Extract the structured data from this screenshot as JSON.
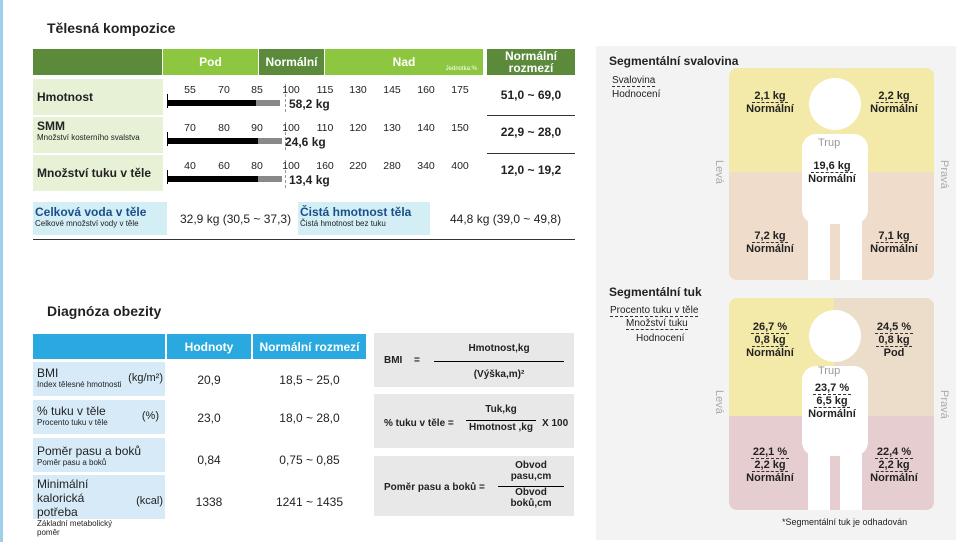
{
  "body_composition": {
    "title": "Tělesná kompozice",
    "headers": {
      "pod": "Pod",
      "normalni": "Normální",
      "nad": "Nad",
      "unit": "Jednotka:%",
      "range": "Normální rozmezí"
    },
    "rows": [
      {
        "label": "Hmotnost",
        "sub": "",
        "ticks": [
          "55",
          "70",
          "85",
          "100",
          "115",
          "130",
          "145",
          "160",
          "175"
        ],
        "value": "58,2 kg",
        "range": "51,0 ~ 69,0"
      },
      {
        "label": "SMM",
        "sub": "Množství kosterního svalstva",
        "ticks": [
          "70",
          "80",
          "90",
          "100",
          "110",
          "120",
          "130",
          "140",
          "150"
        ],
        "value": "24,6 kg",
        "range": "22,9 ~ 28,0"
      },
      {
        "label": "Množství tuku v těle",
        "sub": "",
        "ticks": [
          "40",
          "60",
          "80",
          "100",
          "160",
          "220",
          "280",
          "340",
          "400"
        ],
        "value": "13,4 kg",
        "range": "12,0 ~ 19,2"
      }
    ],
    "water": {
      "label": "Celková voda v těle",
      "sub": "Celkové množství vody v těle",
      "value": "32,9 kg (30,5 ~ 37,3)"
    },
    "lean": {
      "label": "Čistá hmotnost těla",
      "sub": "Čistá hmotnost bez tuku",
      "value": "44,8 kg (39,0 ~ 49,8)"
    }
  },
  "obesity": {
    "title": "Diagnóza obezity",
    "headers": {
      "values": "Hodnoty",
      "range": "Normální rozmezí"
    },
    "rows": [
      {
        "label": "BMI",
        "unit": "(kg/m²)",
        "sub": "Index tělesné hmotnosti",
        "value": "20,9",
        "range": "18,5 ~ 25,0"
      },
      {
        "label": "% tuku v těle",
        "unit": "(%)",
        "sub": "Procento tuku v těle",
        "value": "23,0",
        "range": "18,0 ~ 28,0"
      },
      {
        "label": "Poměr pasu a boků",
        "unit": "",
        "sub": "Poměr pasu a boků",
        "value": "0,84",
        "range": "0,75 ~ 0,85"
      },
      {
        "label": "Minimální kalorická potřeba",
        "unit": "(kcal)",
        "sub": "Základní metabolický poměr",
        "value": "1338",
        "range": "1241 ~ 1435"
      }
    ],
    "formulas": [
      {
        "left": "BMI",
        "eq": "=",
        "num": "Hmotnost,kg",
        "den": "(Výška,m)²",
        "tail": ""
      },
      {
        "left": "% tuku v těle =",
        "eq": "",
        "num": "Tuk,kg",
        "den": "Hmotnost ,kg",
        "tail": "X 100"
      },
      {
        "left": "Poměr pasu a boků =",
        "eq": "",
        "num": "Obvod pasu,cm",
        "den": "Obvod boků,cm",
        "tail": ""
      }
    ]
  },
  "segmental_muscle": {
    "title": "Segmentální svalovina",
    "legend1": "Svalovina",
    "legend2": "Hodnocení",
    "left_arm": {
      "value": "2,1 kg",
      "eval": "Normální"
    },
    "right_arm": {
      "value": "2,2 kg",
      "eval": "Normální"
    },
    "trunk_label": "Trup",
    "trunk": {
      "value": "19,6 kg",
      "eval": "Normální"
    },
    "left_leg": {
      "value": "7,2 kg",
      "eval": "Normální"
    },
    "right_leg": {
      "value": "7,1 kg",
      "eval": "Normální"
    },
    "side_left": "Levá",
    "side_right": "Pravá"
  },
  "segmental_fat": {
    "title": "Segmentální tuk",
    "legend1": "Procento tuku v těle",
    "legend2": "Množství tuku",
    "legend3": "Hodnocení",
    "left_arm": {
      "pct": "26,7 %",
      "value": "0,8 kg",
      "eval": "Normální"
    },
    "right_arm": {
      "pct": "24,5 %",
      "value": "0,8 kg",
      "eval": "Pod"
    },
    "trunk_label": "Trup",
    "trunk": {
      "pct": "23,7 %",
      "value": "6,5 kg",
      "eval": "Normální"
    },
    "left_leg": {
      "pct": "22,1 %",
      "value": "2,2 kg",
      "eval": "Normální"
    },
    "right_leg": {
      "pct": "22,4 %",
      "value": "2,2 kg",
      "eval": "Normální"
    },
    "side_left": "Levá",
    "side_right": "Pravá",
    "footnote": "*Segmentální tuk je odhadován"
  }
}
